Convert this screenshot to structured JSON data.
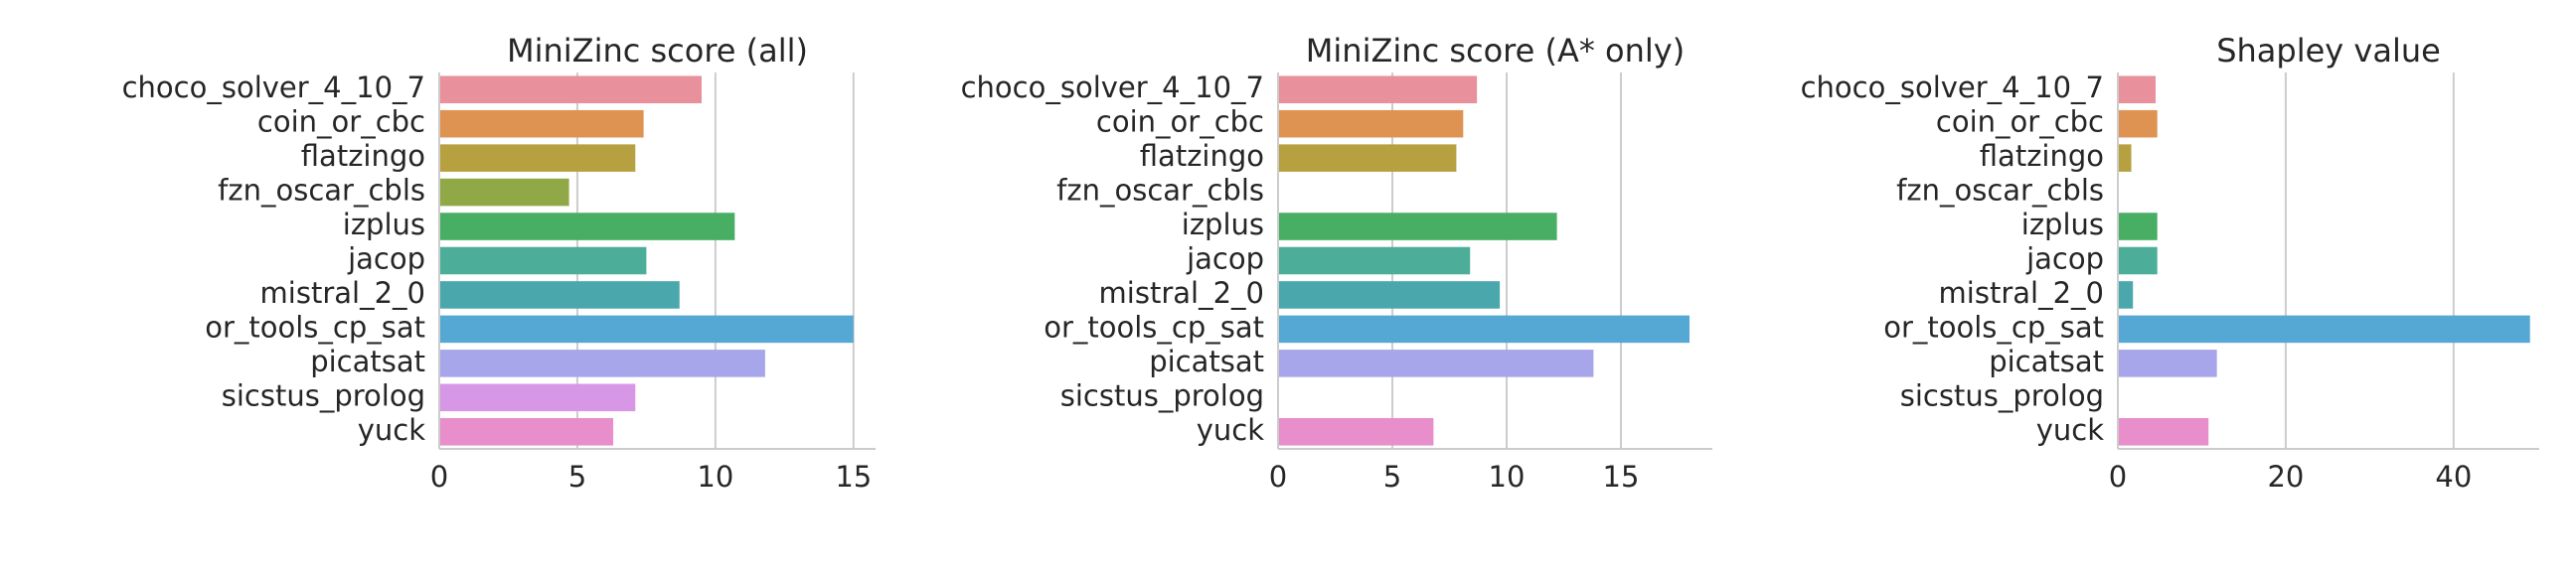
{
  "chart_data": [
    {
      "type": "bar",
      "orientation": "horizontal",
      "title": "MiniZinc score (all)",
      "categories": [
        "choco_solver_4_10_7",
        "coin_or_cbc",
        "flatzingo",
        "fzn_oscar_cbls",
        "izplus",
        "jacop",
        "mistral_2_0",
        "or_tools_cp_sat",
        "picatsat",
        "sicstus_prolog",
        "yuck"
      ],
      "values": [
        9.5,
        7.4,
        7.1,
        4.7,
        10.7,
        7.5,
        8.7,
        15.0,
        11.8,
        7.1,
        6.3
      ],
      "colors": [
        "#e8909c",
        "#de9353",
        "#b7a040",
        "#91a847",
        "#48ae63",
        "#4cae99",
        "#4aa8ad",
        "#55a8d4",
        "#a7a6ea",
        "#d896e6",
        "#e78ecb"
      ],
      "xlim": [
        0,
        15.8
      ],
      "xticks": [
        0,
        5,
        10,
        15
      ],
      "grid": true
    },
    {
      "type": "bar",
      "orientation": "horizontal",
      "title": "MiniZinc score (A* only)",
      "categories": [
        "choco_solver_4_10_7",
        "coin_or_cbc",
        "flatzingo",
        "fzn_oscar_cbls",
        "izplus",
        "jacop",
        "mistral_2_0",
        "or_tools_cp_sat",
        "picatsat",
        "sicstus_prolog",
        "yuck"
      ],
      "values": [
        8.7,
        8.1,
        7.8,
        0,
        12.2,
        8.4,
        9.7,
        18.0,
        13.8,
        0,
        6.8
      ],
      "colors": [
        "#e8909c",
        "#de9353",
        "#b7a040",
        "#91a847",
        "#48ae63",
        "#4cae99",
        "#4aa8ad",
        "#55a8d4",
        "#a7a6ea",
        "#d896e6",
        "#e78ecb"
      ],
      "xlim": [
        0,
        19.0
      ],
      "xticks": [
        0,
        5,
        10,
        15
      ],
      "grid": true
    },
    {
      "type": "bar",
      "orientation": "horizontal",
      "title": "Shapley value",
      "categories": [
        "choco_solver_4_10_7",
        "coin_or_cbc",
        "flatzingo",
        "fzn_oscar_cbls",
        "izplus",
        "jacop",
        "mistral_2_0",
        "or_tools_cp_sat",
        "picatsat",
        "sicstus_prolog",
        "yuck"
      ],
      "values": [
        4.5,
        4.7,
        1.6,
        0,
        4.7,
        4.7,
        1.8,
        49.1,
        11.8,
        0,
        10.8
      ],
      "colors": [
        "#e8909c",
        "#de9353",
        "#b7a040",
        "#91a847",
        "#48ae63",
        "#4cae99",
        "#4aa8ad",
        "#55a8d4",
        "#a7a6ea",
        "#d896e6",
        "#e78ecb"
      ],
      "xlim": [
        0,
        50.2
      ],
      "xticks": [
        0,
        20,
        40
      ],
      "grid": true
    }
  ]
}
